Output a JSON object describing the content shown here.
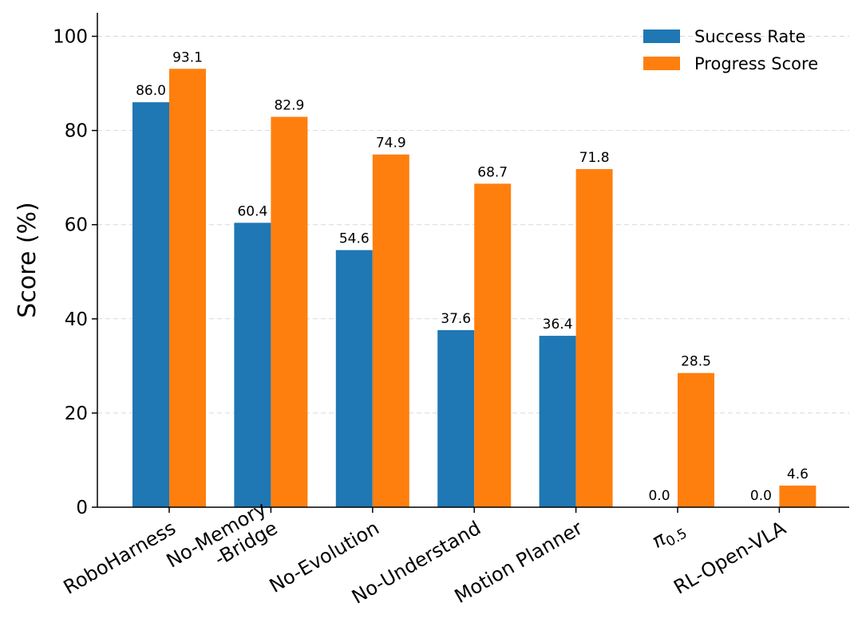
{
  "chart_data": {
    "type": "bar",
    "categories": [
      "RoboHarness",
      "No-Memory\n-Bridge",
      "No-Evolution",
      "No-Understand",
      "Motion Planner",
      "π0.5",
      "RL-Open-VLA"
    ],
    "series": [
      {
        "name": "Success Rate",
        "color": "#1f77b4",
        "values": [
          86.0,
          60.4,
          54.6,
          37.6,
          36.4,
          0.0,
          0.0
        ]
      },
      {
        "name": "Progress Score",
        "color": "#ff7f0e",
        "values": [
          93.1,
          82.9,
          74.9,
          68.7,
          71.8,
          28.5,
          4.6
        ]
      }
    ],
    "value_labels": [
      [
        "86.0",
        "60.4",
        "54.6",
        "37.6",
        "36.4",
        "0.0",
        "0.0"
      ],
      [
        "93.1",
        "82.9",
        "74.9",
        "68.7",
        "71.8",
        "28.5",
        "4.6"
      ]
    ],
    "ylabel": "Score (%)",
    "xlabel": "",
    "ylim": [
      0,
      105
    ],
    "yticks": [
      0,
      20,
      40,
      60,
      80,
      100
    ],
    "grid": "horizontal dashed",
    "legend": "top-right"
  }
}
